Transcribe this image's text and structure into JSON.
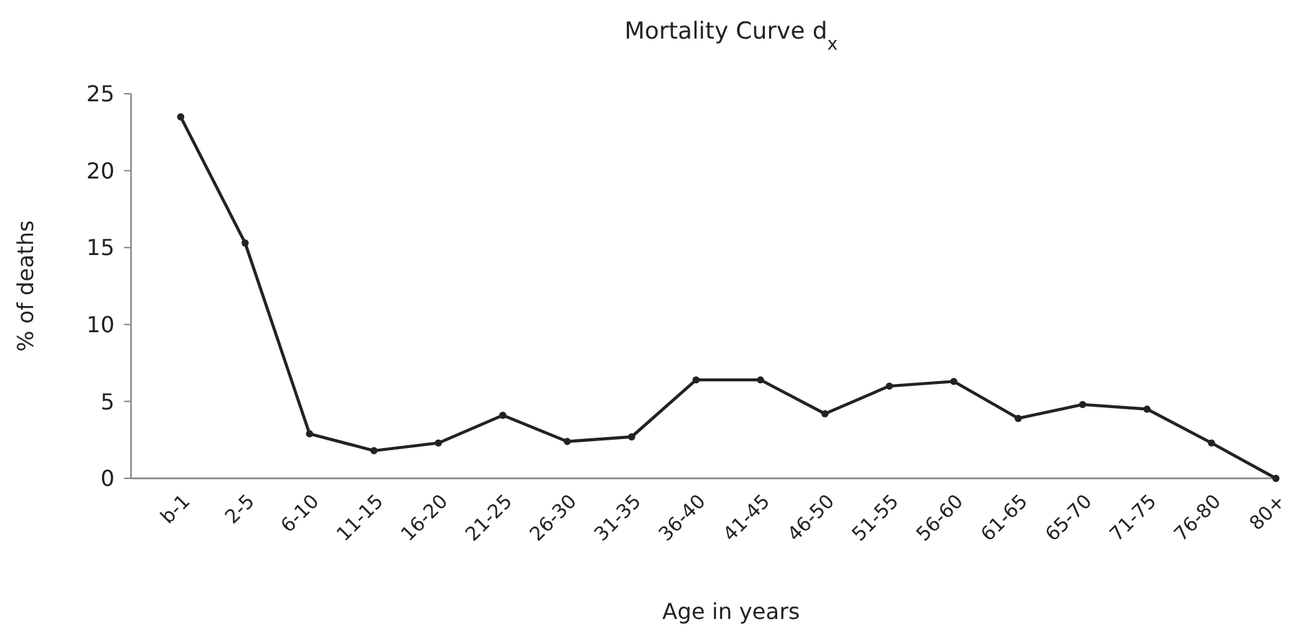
{
  "chart_data": {
    "type": "line",
    "title": "Mortality Curve d$_{x}$",
    "xlabel": "Age in years",
    "ylabel": "% of deaths",
    "categories": [
      "b-1",
      "2-5",
      "6-10",
      "11-15",
      "16-20",
      "21-25",
      "26-30",
      "31-35",
      "36-40",
      "41-45",
      "46-50",
      "51-55",
      "56-60",
      "61-65",
      "65-70",
      "71-75",
      "76-80",
      "80+"
    ],
    "series": [
      {
        "color": "#222222",
        "values": [
          23.5,
          15.3,
          2.9,
          1.8,
          2.3,
          4.1,
          2.4,
          2.7,
          6.4,
          6.4,
          4.2,
          6.0,
          6.3,
          3.9,
          4.8,
          4.5,
          2.3,
          0
        ]
      }
    ],
    "ylim": [
      0,
      25
    ],
    "yticks": [
      0,
      5,
      10,
      15,
      20,
      25
    ],
    "grid": false,
    "marker": "circle",
    "line_style": "solid"
  }
}
